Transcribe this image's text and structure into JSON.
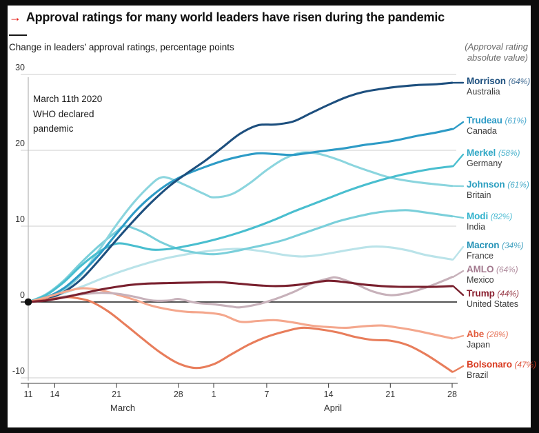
{
  "header": {
    "arrow": "→",
    "title": "Approval ratings for many world leaders have risen during the pandemic",
    "subtitle": "Change in leaders’ approval ratings, percentage points",
    "right_note_line1": "(Approval rating",
    "right_note_line2": "absolute value)",
    "accent_red": "#e3120b"
  },
  "annotation": {
    "line1": "March 11th 2020",
    "line2": "WHO declared",
    "line3": "pandemic"
  },
  "chart_data": {
    "type": "line",
    "title": "Approval ratings for many world leaders have risen during the pandemic",
    "ylabel": "Change in leaders' approval ratings, percentage points",
    "x_unit": "days since March 11th 2020 (WHO pandemic declaration)",
    "ylim": [
      -10,
      30
    ],
    "grid": "horizontal",
    "legend_position": "right",
    "y_ticks": [
      {
        "v": 30,
        "label": "30"
      },
      {
        "v": 20,
        "label": "20"
      },
      {
        "v": 10,
        "label": "10"
      },
      {
        "v": 0,
        "label": "0"
      },
      {
        "v": -10,
        "label": "-10"
      }
    ],
    "x_ticks": [
      {
        "day": 0,
        "label": "11"
      },
      {
        "day": 3,
        "label": "14"
      },
      {
        "day": 10,
        "label": "21"
      },
      {
        "day": 17,
        "label": "28"
      },
      {
        "day": 21,
        "label": "1"
      },
      {
        "day": 27,
        "label": "7"
      },
      {
        "day": 34,
        "label": "14"
      },
      {
        "day": 41,
        "label": "21"
      },
      {
        "day": 48,
        "label": "28"
      }
    ],
    "month_labels": [
      {
        "label": "March",
        "day": 10.7
      },
      {
        "label": "April",
        "day": 34.5
      }
    ],
    "origin_marker": {
      "day": 0,
      "value": 0
    },
    "series": [
      {
        "name": "Morrison",
        "approval": "(64%)",
        "country": "Australia",
        "color": "#1d4f7e",
        "label_color": "#1d4f7e",
        "z": 5,
        "label_anchor": 120,
        "points": [
          [
            0,
            0
          ],
          [
            2,
            0.4
          ],
          [
            4,
            1.3
          ],
          [
            6,
            3
          ],
          [
            8,
            5.5
          ],
          [
            10,
            8.2
          ],
          [
            12,
            10.8
          ],
          [
            14,
            13.2
          ],
          [
            16,
            15.3
          ],
          [
            18,
            17
          ],
          [
            20,
            18.6
          ],
          [
            22,
            20.4
          ],
          [
            24,
            22.2
          ],
          [
            26,
            23.3
          ],
          [
            28,
            23.4
          ],
          [
            30,
            23.8
          ],
          [
            32,
            24.9
          ],
          [
            34,
            26
          ],
          [
            36,
            27
          ],
          [
            38,
            27.7
          ],
          [
            40,
            28.1
          ],
          [
            42,
            28.4
          ],
          [
            44,
            28.6
          ],
          [
            46,
            28.7
          ],
          [
            48,
            28.9
          ]
        ]
      },
      {
        "name": "Trudeau",
        "approval": "(61%)",
        "country": "Canada",
        "color": "#2d9bc6",
        "label_color": "#2d9bc6",
        "z": 4,
        "label_anchor": 177,
        "points": [
          [
            0,
            0
          ],
          [
            2,
            0.6
          ],
          [
            4,
            1.8
          ],
          [
            6,
            3.8
          ],
          [
            8,
            6.2
          ],
          [
            10,
            9
          ],
          [
            12,
            11.8
          ],
          [
            14,
            14
          ],
          [
            16,
            15.7
          ],
          [
            18,
            16.9
          ],
          [
            20,
            17.8
          ],
          [
            22,
            18.6
          ],
          [
            24,
            19.2
          ],
          [
            26,
            19.6
          ],
          [
            28,
            19.5
          ],
          [
            30,
            19.4
          ],
          [
            32,
            19.7
          ],
          [
            34,
            20
          ],
          [
            36,
            20.3
          ],
          [
            38,
            20.7
          ],
          [
            40,
            21
          ],
          [
            42,
            21.4
          ],
          [
            44,
            21.9
          ],
          [
            46,
            22.3
          ],
          [
            48,
            22.8
          ]
        ]
      },
      {
        "name": "Merkel",
        "approval": "(58%)",
        "country": "Germany",
        "color": "#49becf",
        "label_color": "#31a8c6",
        "z": 3,
        "label_anchor": 224,
        "points": [
          [
            0,
            0
          ],
          [
            2,
            0.9
          ],
          [
            4,
            2.6
          ],
          [
            6,
            4.8
          ],
          [
            8,
            6.6
          ],
          [
            10,
            7.7
          ],
          [
            12,
            7.4
          ],
          [
            14,
            6.9
          ],
          [
            16,
            7
          ],
          [
            18,
            7.4
          ],
          [
            20,
            7.9
          ],
          [
            22,
            8.5
          ],
          [
            24,
            9.2
          ],
          [
            26,
            10
          ],
          [
            28,
            10.9
          ],
          [
            30,
            11.9
          ],
          [
            32,
            12.8
          ],
          [
            34,
            13.7
          ],
          [
            36,
            14.6
          ],
          [
            38,
            15.4
          ],
          [
            40,
            16.1
          ],
          [
            42,
            16.7
          ],
          [
            44,
            17.2
          ],
          [
            46,
            17.6
          ],
          [
            48,
            17.9
          ]
        ]
      },
      {
        "name": "Johnson",
        "approval": "(61%)",
        "country": "Britain",
        "color": "#8bd5de",
        "label_color": "#2b9fc0",
        "z": 2,
        "label_anchor": 270,
        "points": [
          [
            0,
            0
          ],
          [
            2,
            0.5
          ],
          [
            4,
            1.6
          ],
          [
            6,
            3.6
          ],
          [
            8,
            6.8
          ],
          [
            10,
            10.2
          ],
          [
            12,
            13.2
          ],
          [
            14,
            15.6
          ],
          [
            15,
            16.4
          ],
          [
            16,
            16.3
          ],
          [
            18,
            15.3
          ],
          [
            20,
            14.2
          ],
          [
            21,
            13.8
          ],
          [
            23,
            14.2
          ],
          [
            25,
            15.6
          ],
          [
            27,
            17.4
          ],
          [
            29,
            18.9
          ],
          [
            31,
            19.7
          ],
          [
            33,
            19.5
          ],
          [
            35,
            18.8
          ],
          [
            37,
            17.9
          ],
          [
            39,
            17.1
          ],
          [
            41,
            16.4
          ],
          [
            44,
            15.8
          ],
          [
            48,
            15.3
          ]
        ]
      },
      {
        "name": "Modi",
        "approval": "(82%)",
        "country": "India",
        "color": "#7acfda",
        "label_color": "#2fb1cc",
        "z": 1,
        "label_anchor": 316,
        "points": [
          [
            0,
            0
          ],
          [
            2,
            1
          ],
          [
            4,
            2.8
          ],
          [
            6,
            5.2
          ],
          [
            8,
            7.4
          ],
          [
            10,
            9.3
          ],
          [
            11,
            10
          ],
          [
            13,
            9.2
          ],
          [
            15,
            7.9
          ],
          [
            17,
            7
          ],
          [
            19,
            6.5
          ],
          [
            21,
            6.3
          ],
          [
            23,
            6.6
          ],
          [
            25,
            7.1
          ],
          [
            27,
            7.6
          ],
          [
            29,
            8.2
          ],
          [
            31,
            9
          ],
          [
            33,
            9.8
          ],
          [
            35,
            10.6
          ],
          [
            37,
            11.2
          ],
          [
            39,
            11.7
          ],
          [
            41,
            12
          ],
          [
            43,
            12.1
          ],
          [
            45,
            11.8
          ],
          [
            48,
            11.3
          ]
        ]
      },
      {
        "name": "Macron",
        "approval": "(34%)",
        "country": "France",
        "color": "#bae3e9",
        "label_color": "#2492b6",
        "z": 0,
        "label_anchor": 358,
        "points": [
          [
            0,
            0
          ],
          [
            3,
            0.8
          ],
          [
            6,
            2
          ],
          [
            9,
            3.4
          ],
          [
            12,
            4.6
          ],
          [
            15,
            5.6
          ],
          [
            18,
            6.3
          ],
          [
            21,
            6.8
          ],
          [
            24,
            7
          ],
          [
            27,
            6.6
          ],
          [
            29,
            6.2
          ],
          [
            31,
            6
          ],
          [
            33,
            6.2
          ],
          [
            35,
            6.6
          ],
          [
            37,
            7
          ],
          [
            39,
            7.3
          ],
          [
            41,
            7.2
          ],
          [
            43,
            6.8
          ],
          [
            45,
            6.2
          ],
          [
            48,
            5.6
          ]
        ]
      },
      {
        "name": "AMLO",
        "approval": "(64%)",
        "country": "Mexico",
        "color": "#c7b1ba",
        "label_color": "#a2788d",
        "z": 7,
        "label_anchor": 393,
        "points": [
          [
            0,
            0
          ],
          [
            2,
            0.3
          ],
          [
            4,
            0.7
          ],
          [
            6,
            1
          ],
          [
            8,
            1.2
          ],
          [
            10,
            1.1
          ],
          [
            12,
            0.7
          ],
          [
            14,
            0.2
          ],
          [
            16,
            0.2
          ],
          [
            17,
            0.4
          ],
          [
            19,
            -0.1
          ],
          [
            21,
            -0.3
          ],
          [
            23,
            -0.6
          ],
          [
            24,
            -0.7
          ],
          [
            26,
            -0.3
          ],
          [
            28,
            0.4
          ],
          [
            30,
            1.3
          ],
          [
            32,
            2.4
          ],
          [
            34,
            3.1
          ],
          [
            35,
            3.2
          ],
          [
            37,
            2.4
          ],
          [
            39,
            1.4
          ],
          [
            41,
            0.9
          ],
          [
            43,
            1.2
          ],
          [
            45,
            1.9
          ],
          [
            47,
            2.8
          ],
          [
            48,
            3.3
          ]
        ]
      },
      {
        "name": "Trump",
        "approval": "(44%)",
        "country": "United States",
        "color": "#79202e",
        "label_color": "#8a1f2f",
        "z": 9,
        "label_anchor": 428,
        "points": [
          [
            0,
            0
          ],
          [
            2,
            0.2
          ],
          [
            4,
            0.6
          ],
          [
            6,
            1.1
          ],
          [
            8,
            1.6
          ],
          [
            10,
            2
          ],
          [
            12,
            2.3
          ],
          [
            14,
            2.45
          ],
          [
            16,
            2.5
          ],
          [
            18,
            2.55
          ],
          [
            20,
            2.6
          ],
          [
            22,
            2.6
          ],
          [
            24,
            2.4
          ],
          [
            26,
            2.2
          ],
          [
            28,
            2.1
          ],
          [
            30,
            2.2
          ],
          [
            32,
            2.5
          ],
          [
            34,
            2.8
          ],
          [
            36,
            2.6
          ],
          [
            38,
            2.3
          ],
          [
            40,
            2.1
          ],
          [
            42,
            2
          ],
          [
            44,
            2
          ],
          [
            46,
            2
          ],
          [
            48,
            2.1
          ]
        ]
      },
      {
        "name": "Abe",
        "approval": "(28%)",
        "country": "Japan",
        "color": "#f4a78d",
        "label_color": "#e25b3c",
        "z": 6,
        "label_anchor": 487,
        "points": [
          [
            0,
            0
          ],
          [
            2,
            0.6
          ],
          [
            4,
            1.3
          ],
          [
            6,
            1.8
          ],
          [
            8,
            1.6
          ],
          [
            10,
            1
          ],
          [
            12,
            0.3
          ],
          [
            14,
            -0.5
          ],
          [
            16,
            -1
          ],
          [
            18,
            -1.3
          ],
          [
            20,
            -1.4
          ],
          [
            22,
            -1.7
          ],
          [
            24,
            -2.6
          ],
          [
            26,
            -2.5
          ],
          [
            28,
            -2.4
          ],
          [
            30,
            -2.7
          ],
          [
            32,
            -3.1
          ],
          [
            34,
            -3.3
          ],
          [
            36,
            -3.4
          ],
          [
            38,
            -3.2
          ],
          [
            40,
            -3.1
          ],
          [
            42,
            -3.4
          ],
          [
            44,
            -3.8
          ],
          [
            46,
            -4.3
          ],
          [
            48,
            -4.8
          ]
        ]
      },
      {
        "name": "Bolsonaro",
        "approval": "(47%)",
        "country": "Brazil",
        "color": "#e87d5b",
        "label_color": "#d93b21",
        "z": 8,
        "label_anchor": 531,
        "points": [
          [
            0,
            0
          ],
          [
            2,
            0.3
          ],
          [
            4,
            0.6
          ],
          [
            5,
            0.6
          ],
          [
            7,
            0.1
          ],
          [
            9,
            -1.2
          ],
          [
            11,
            -3
          ],
          [
            13,
            -4.9
          ],
          [
            15,
            -6.7
          ],
          [
            17,
            -8.1
          ],
          [
            19,
            -8.7
          ],
          [
            21,
            -8.2
          ],
          [
            23,
            -6.9
          ],
          [
            25,
            -5.6
          ],
          [
            27,
            -4.6
          ],
          [
            29,
            -3.9
          ],
          [
            31,
            -3.4
          ],
          [
            33,
            -3.6
          ],
          [
            35,
            -4
          ],
          [
            37,
            -4.6
          ],
          [
            39,
            -5
          ],
          [
            41,
            -5.1
          ],
          [
            43,
            -5.7
          ],
          [
            45,
            -6.9
          ],
          [
            47,
            -8.4
          ],
          [
            48,
            -9.2
          ]
        ]
      }
    ]
  }
}
